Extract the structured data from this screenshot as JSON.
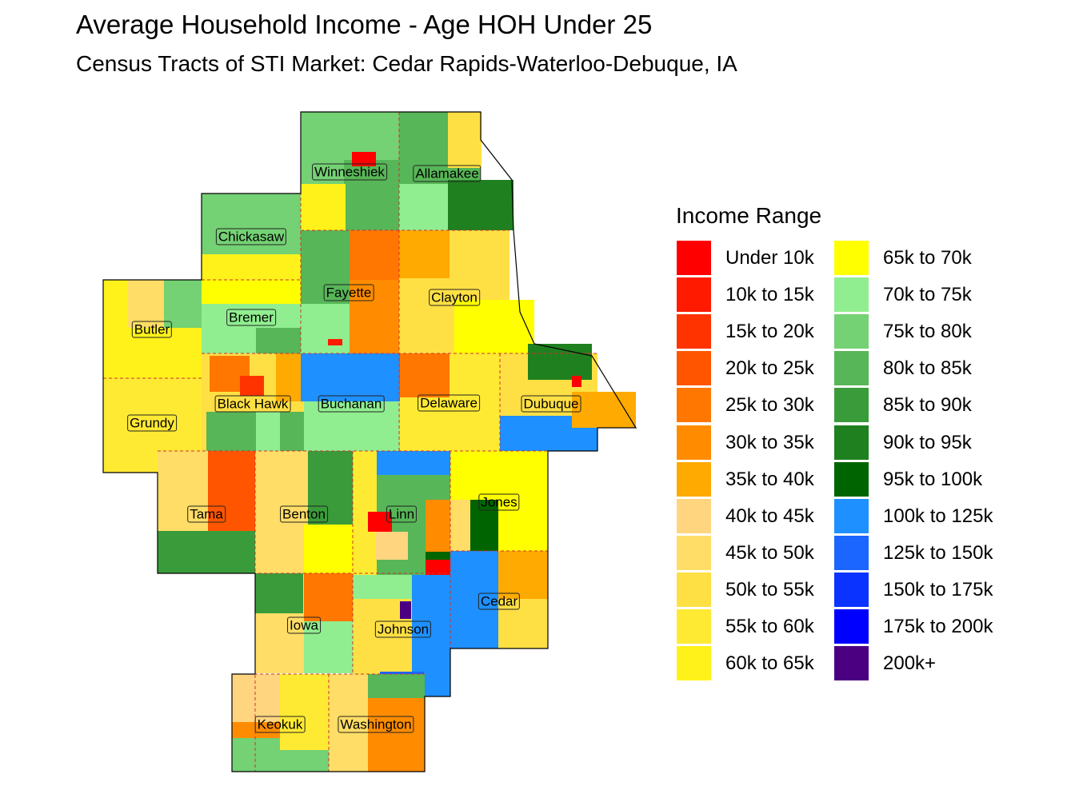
{
  "title": "Average Household Income - Age HOH Under 25",
  "subtitle": "Census Tracts of STI Market: Cedar Rapids-Waterloo-Debuque, IA",
  "legend": {
    "title": "Income Range",
    "items": [
      {
        "label": "Under 10k",
        "color": "#ff0000"
      },
      {
        "label": "10k to 15k",
        "color": "#ff1a00"
      },
      {
        "label": "15k to 20k",
        "color": "#ff3300"
      },
      {
        "label": "20k to 25k",
        "color": "#ff5500"
      },
      {
        "label": "25k to 30k",
        "color": "#ff7700"
      },
      {
        "label": "30k to 35k",
        "color": "#ff8c00"
      },
      {
        "label": "35k to 40k",
        "color": "#ffaa00"
      },
      {
        "label": "40k to 45k",
        "color": "#ffd580"
      },
      {
        "label": "45k to 50k",
        "color": "#ffdd66"
      },
      {
        "label": "50k to 55k",
        "color": "#ffe044"
      },
      {
        "label": "55k to 60k",
        "color": "#ffea33"
      },
      {
        "label": "60k to 65k",
        "color": "#fff21a"
      },
      {
        "label": "65k to 70k",
        "color": "#ffff00"
      },
      {
        "label": "70k to 75k",
        "color": "#90ee90"
      },
      {
        "label": "75k to 80k",
        "color": "#74d174"
      },
      {
        "label": "80k to 85k",
        "color": "#57b657"
      },
      {
        "label": "85k to 90k",
        "color": "#3a9b3a"
      },
      {
        "label": "90k to 95k",
        "color": "#1f801f"
      },
      {
        "label": "95k to 100k",
        "color": "#006400"
      },
      {
        "label": "100k to 125k",
        "color": "#1e90ff"
      },
      {
        "label": "125k to 150k",
        "color": "#1a66ff"
      },
      {
        "label": "150k to 175k",
        "color": "#0a33ff"
      },
      {
        "label": "175k to 200k",
        "color": "#0000ff"
      },
      {
        "label": "200k+",
        "color": "#4b0082"
      }
    ]
  },
  "counties": [
    {
      "name": "Winneshiek"
    },
    {
      "name": "Allamakee"
    },
    {
      "name": "Chickasaw"
    },
    {
      "name": "Fayette"
    },
    {
      "name": "Clayton"
    },
    {
      "name": "Butler"
    },
    {
      "name": "Bremer"
    },
    {
      "name": "Black Hawk"
    },
    {
      "name": "Buchanan"
    },
    {
      "name": "Delaware"
    },
    {
      "name": "Dubuque"
    },
    {
      "name": "Grundy"
    },
    {
      "name": "Tama"
    },
    {
      "name": "Benton"
    },
    {
      "name": "Linn"
    },
    {
      "name": "Jones"
    },
    {
      "name": "Cedar"
    },
    {
      "name": "Iowa"
    },
    {
      "name": "Johnson"
    },
    {
      "name": "Keokuk"
    },
    {
      "name": "Washington"
    }
  ]
}
